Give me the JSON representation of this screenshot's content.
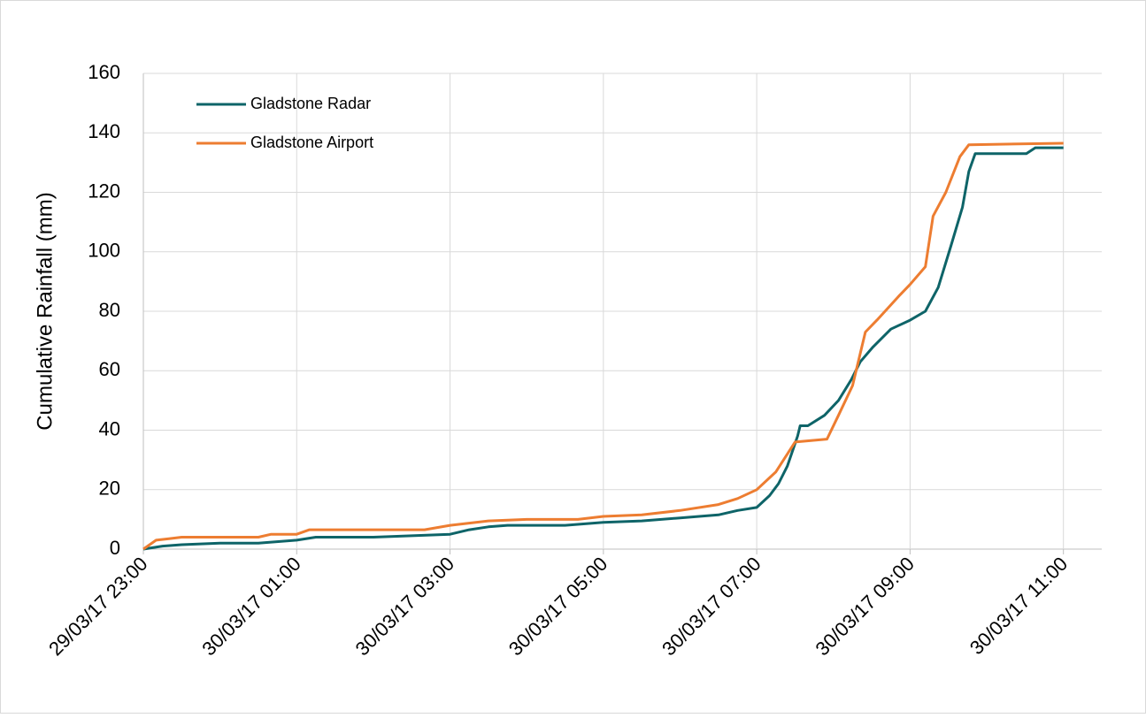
{
  "chart_data": {
    "type": "line",
    "y_label": "Cumulative Rainfall (mm)",
    "xlim": [
      "29/03/17 23:00",
      "30/03/17 11:30"
    ],
    "xticks": [
      "29/03/17 23:00",
      "30/03/17 01:00",
      "30/03/17 03:00",
      "30/03/17 05:00",
      "30/03/17 07:00",
      "30/03/17 09:00",
      "30/03/17 11:00"
    ],
    "ylim": [
      0,
      160
    ],
    "yticks": [
      0,
      20,
      40,
      60,
      80,
      100,
      120,
      140,
      160
    ],
    "grid": true,
    "legend": "top-left",
    "series": [
      {
        "name": "Gladstone Radar",
        "color": "#0e6468",
        "x": [
          "29/03/17 23:00",
          "29/03/17 23:15",
          "29/03/17 23:30",
          "30/03/17 00:00",
          "30/03/17 00:30",
          "30/03/17 01:00",
          "30/03/17 01:15",
          "30/03/17 02:00",
          "30/03/17 03:00",
          "30/03/17 03:15",
          "30/03/17 03:30",
          "30/03/17 03:45",
          "30/03/17 04:30",
          "30/03/17 05:00",
          "30/03/17 05:30",
          "30/03/17 06:00",
          "30/03/17 06:15",
          "30/03/17 06:30",
          "30/03/17 06:45",
          "30/03/17 07:00",
          "30/03/17 07:10",
          "30/03/17 07:17",
          "30/03/17 07:24",
          "30/03/17 07:32",
          "30/03/17 07:34",
          "30/03/17 07:40",
          "30/03/17 07:53",
          "30/03/17 08:04",
          "30/03/17 08:14",
          "30/03/17 08:21",
          "30/03/17 08:31",
          "30/03/17 08:45",
          "30/03/17 09:00",
          "30/03/17 09:12",
          "30/03/17 09:22",
          "30/03/17 09:32",
          "30/03/17 09:41",
          "30/03/17 09:46",
          "30/03/17 09:51",
          "30/03/17 10:31",
          "30/03/17 10:38",
          "30/03/17 11:00"
        ],
        "values": [
          0,
          1,
          1.5,
          2,
          2,
          3,
          4,
          4,
          5,
          6.5,
          7.5,
          8,
          8,
          9,
          9.5,
          10.5,
          11,
          11.5,
          13,
          14,
          18,
          22,
          28,
          38,
          41.5,
          41.5,
          45,
          50,
          57,
          63,
          68,
          74,
          77,
          80,
          88,
          102,
          115,
          127,
          133,
          133,
          135,
          135
        ]
      },
      {
        "name": "Gladstone Airport",
        "color": "#ed7d31",
        "x": [
          "29/03/17 23:00",
          "29/03/17 23:10",
          "29/03/17 23:20",
          "29/03/17 23:30",
          "30/03/17 00:30",
          "30/03/17 00:40",
          "30/03/17 01:00",
          "30/03/17 01:10",
          "30/03/17 02:40",
          "30/03/17 03:00",
          "30/03/17 03:30",
          "30/03/17 04:00",
          "30/03/17 04:40",
          "30/03/17 05:00",
          "30/03/17 05:30",
          "30/03/17 06:00",
          "30/03/17 06:30",
          "30/03/17 06:45",
          "30/03/17 07:00",
          "30/03/17 07:15",
          "30/03/17 07:30",
          "30/03/17 07:55",
          "30/03/17 08:04",
          "30/03/17 08:15",
          "30/03/17 08:25",
          "30/03/17 08:34",
          "30/03/17 08:51",
          "30/03/17 09:00",
          "30/03/17 09:12",
          "30/03/17 09:18",
          "30/03/17 09:28",
          "30/03/17 09:39",
          "30/03/17 09:46",
          "30/03/17 11:00"
        ],
        "values": [
          0,
          3,
          3.5,
          4,
          4,
          5,
          5,
          6.5,
          6.5,
          8,
          9.5,
          10,
          10,
          11,
          11.5,
          13,
          15,
          17,
          20,
          26,
          36,
          37,
          45,
          55,
          73,
          77,
          85,
          89,
          95,
          112,
          120,
          132,
          136,
          136.5
        ]
      }
    ]
  }
}
